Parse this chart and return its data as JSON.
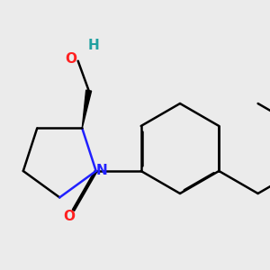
{
  "background_color": "#ebebeb",
  "bond_color": "#000000",
  "N_color": "#2020ff",
  "O_color": "#ff2020",
  "H_color": "#20a0a0",
  "line_width": 1.8,
  "dbo": 0.018,
  "xlim": [
    -2.8,
    3.2
  ],
  "ylim": [
    -2.2,
    2.8
  ]
}
